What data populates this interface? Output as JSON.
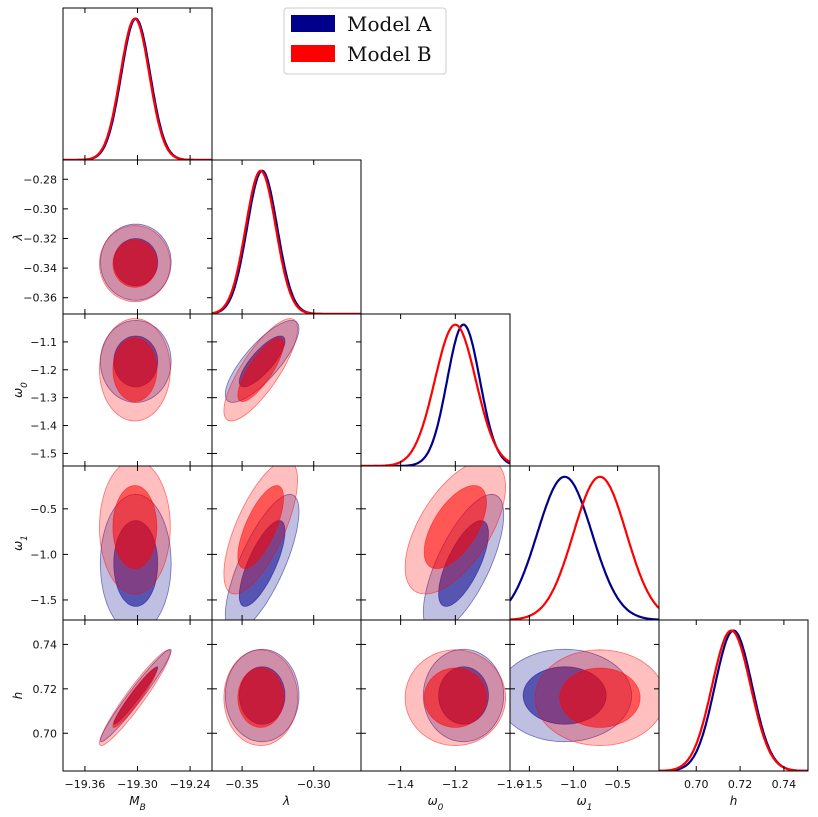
{
  "chart_data": {
    "type": "corner",
    "title": "",
    "parameters": [
      {
        "key": "MB",
        "label": "M",
        "sub": "B",
        "range": [
          -19.385,
          -19.215
        ],
        "ticks": [
          -19.36,
          -19.3,
          -19.24
        ],
        "tick_labels": [
          "−19.36",
          "−19.30",
          "−19.24"
        ]
      },
      {
        "key": "lambda",
        "label": "λ",
        "sub": "",
        "range": [
          -0.371,
          -0.267
        ],
        "ticks": [
          -0.36,
          -0.34,
          -0.32,
          -0.3,
          -0.28
        ],
        "tick_labels": [
          "−0.36",
          "−0.34",
          "−0.32",
          "−0.30",
          "−0.28"
        ],
        "x_ticks": [
          -0.35,
          -0.3
        ],
        "x_tick_labels": [
          "−0.35",
          "−0.30"
        ]
      },
      {
        "key": "w0",
        "label": "ω",
        "sub": "0",
        "range": [
          -1.545,
          -1.0
        ],
        "ticks": [
          -1.5,
          -1.4,
          -1.3,
          -1.2,
          -1.1
        ],
        "tick_labels": [
          "−1.5",
          "−1.4",
          "−1.3",
          "−1.2",
          "−1.1"
        ],
        "x_ticks": [
          -1.4,
          -1.2,
          -1.0
        ],
        "x_tick_labels": [
          "−1.4",
          "−1.2",
          "−1.0"
        ]
      },
      {
        "key": "w1",
        "label": "ω",
        "sub": "1",
        "range": [
          -1.72,
          -0.03
        ],
        "ticks": [
          -1.5,
          -1.0,
          -0.5
        ],
        "tick_labels": [
          "−1.5",
          "−1.0",
          "−0.5"
        ]
      },
      {
        "key": "h",
        "label": "h",
        "sub": "",
        "range": [
          0.683,
          0.751
        ],
        "ticks": [
          0.7,
          0.72,
          0.74
        ],
        "tick_labels": [
          "0.70",
          "0.72",
          "0.74"
        ]
      }
    ],
    "series": [
      {
        "name": "Model A",
        "color": "#00008b",
        "means": {
          "MB": -19.302,
          "lambda": -0.336,
          "w0": -1.17,
          "w1": -1.1,
          "h": 0.717
        },
        "sigmas": {
          "MB": 0.0165,
          "lambda": 0.0105,
          "w0": 0.06,
          "w1": 0.31,
          "h": 0.0085
        },
        "correlations": {
          "MB|h": 0.97,
          "lambda|w0": 0.8,
          "lambda|w1": 0.75,
          "w0|w1": 0.7
        }
      },
      {
        "name": "Model B",
        "color": "#ff0000",
        "means": {
          "MB": -19.303,
          "lambda": -0.337,
          "w0": -1.2,
          "w1": -0.7,
          "h": 0.716
        },
        "sigmas": {
          "MB": 0.0165,
          "lambda": 0.0105,
          "w0": 0.075,
          "w1": 0.3,
          "h": 0.0088
        },
        "correlations": {
          "MB|h": 0.95,
          "lambda|w0": 0.8,
          "lambda|w1": 0.7,
          "w0|w1": 0.6
        }
      }
    ],
    "legend": {
      "position": "top-center",
      "entries": [
        "Model A",
        "Model B"
      ]
    },
    "grid": false
  }
}
